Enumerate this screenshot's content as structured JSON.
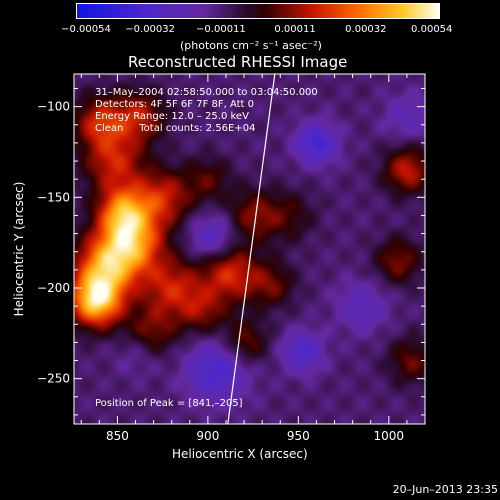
{
  "chart_data": {
    "type": "heatmap",
    "title": "Reconstructed RHESSI Image",
    "xlabel": "Heliocentric X (arcsec)",
    "ylabel": "Heliocentric Y (arcsec)",
    "xlim": [
      826,
      1020
    ],
    "ylim": [
      -275,
      -82
    ],
    "x_ticks": [
      850,
      900,
      950,
      1000
    ],
    "y_ticks": [
      -100,
      -150,
      -200,
      -250
    ],
    "colorbar": {
      "unit_label": "(photons cm⁻² s⁻¹ asec⁻²)",
      "range": [
        -0.00054,
        0.00054
      ],
      "tick_labels": [
        "−0.00054",
        "−0.00032",
        "−0.00011",
        "0.00011",
        "0.00032",
        "0.00054"
      ],
      "tick_values": [
        -0.00054,
        -0.00032,
        -0.00011,
        0.00011,
        0.00032,
        0.00054
      ]
    },
    "annotations": [
      "31–May–2004 02:58:50.000 to 03:04:50.000",
      "Detectors: 4F 5F 6F 7F 8F, Att 0",
      "Energy Range: 12.0 – 25.0 keV",
      "Clean     Total counts: 2.56E+04"
    ],
    "peak_label": "Position of Peak = [841,–205]",
    "peak_position": [
      841,
      -205
    ],
    "limb_line": [
      [
        911,
        -275
      ],
      [
        937,
        -82
      ]
    ],
    "sources": [
      {
        "x": 838,
        "y": -207,
        "amp": 1.1,
        "s": 10
      },
      {
        "x": 843,
        "y": -188,
        "amp": 0.85,
        "s": 12
      },
      {
        "x": 858,
        "y": -175,
        "amp": 0.85,
        "s": 12
      },
      {
        "x": 853,
        "y": -158,
        "amp": 0.8,
        "s": 10
      },
      {
        "x": 848,
        "y": -130,
        "amp": 0.55,
        "s": 12
      },
      {
        "x": 840,
        "y": -108,
        "amp": 0.55,
        "s": 10
      },
      {
        "x": 862,
        "y": -105,
        "amp": 0.5,
        "s": 10
      },
      {
        "x": 875,
        "y": -150,
        "amp": 0.55,
        "s": 11
      },
      {
        "x": 880,
        "y": -200,
        "amp": 0.55,
        "s": 12
      },
      {
        "x": 868,
        "y": -225,
        "amp": 0.4,
        "s": 10
      },
      {
        "x": 897,
        "y": -213,
        "amp": 0.35,
        "s": 9
      },
      {
        "x": 912,
        "y": -192,
        "amp": 0.6,
        "s": 11
      },
      {
        "x": 925,
        "y": -160,
        "amp": 0.4,
        "s": 10
      },
      {
        "x": 920,
        "y": -230,
        "amp": 0.4,
        "s": 9
      },
      {
        "x": 935,
        "y": -198,
        "amp": 0.35,
        "s": 9
      },
      {
        "x": 900,
        "y": -140,
        "amp": 0.3,
        "s": 9
      },
      {
        "x": 1010,
        "y": -135,
        "amp": 0.55,
        "s": 9
      },
      {
        "x": 1005,
        "y": -185,
        "amp": 0.4,
        "s": 9
      },
      {
        "x": 1012,
        "y": -240,
        "amp": 0.35,
        "s": 9
      },
      {
        "x": 945,
        "y": -160,
        "amp": 0.25,
        "s": 10
      },
      {
        "x": 905,
        "y": -245,
        "amp": -0.5,
        "s": 12
      },
      {
        "x": 960,
        "y": -120,
        "amp": -0.55,
        "s": 8
      },
      {
        "x": 952,
        "y": -235,
        "amp": -0.45,
        "s": 8
      },
      {
        "x": 902,
        "y": -172,
        "amp": -0.4,
        "s": 9
      },
      {
        "x": 862,
        "y": -235,
        "amp": -0.2,
        "s": 9
      },
      {
        "x": 985,
        "y": -210,
        "amp": -0.3,
        "s": 10
      },
      {
        "x": 1010,
        "y": -105,
        "amp": -0.25,
        "s": 9
      }
    ],
    "background_level": -0.22
  },
  "footer": {
    "timestamp": "20–Jun–2013 23:35"
  }
}
